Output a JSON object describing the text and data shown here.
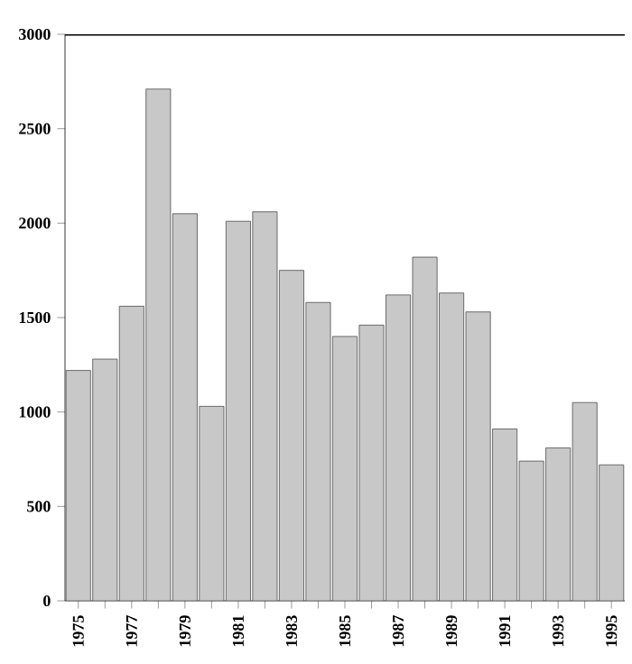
{
  "chart_data": {
    "type": "bar",
    "categories": [
      "1975",
      null,
      "1977",
      null,
      "1979",
      null,
      "1981",
      null,
      "1983",
      null,
      "1985",
      null,
      "1987",
      null,
      "1989",
      null,
      "1991",
      null,
      "1993",
      null,
      "1995"
    ],
    "values": [
      1220,
      1280,
      1560,
      2710,
      2050,
      1030,
      2010,
      2060,
      1750,
      1580,
      1400,
      1460,
      1620,
      1820,
      1630,
      1530,
      910,
      740,
      810,
      1050,
      720
    ],
    "color": "#c8c8c8",
    "ylim": [
      0,
      3000
    ],
    "yticks": [
      0,
      500,
      1000,
      1500,
      2000,
      2500,
      3000
    ]
  }
}
